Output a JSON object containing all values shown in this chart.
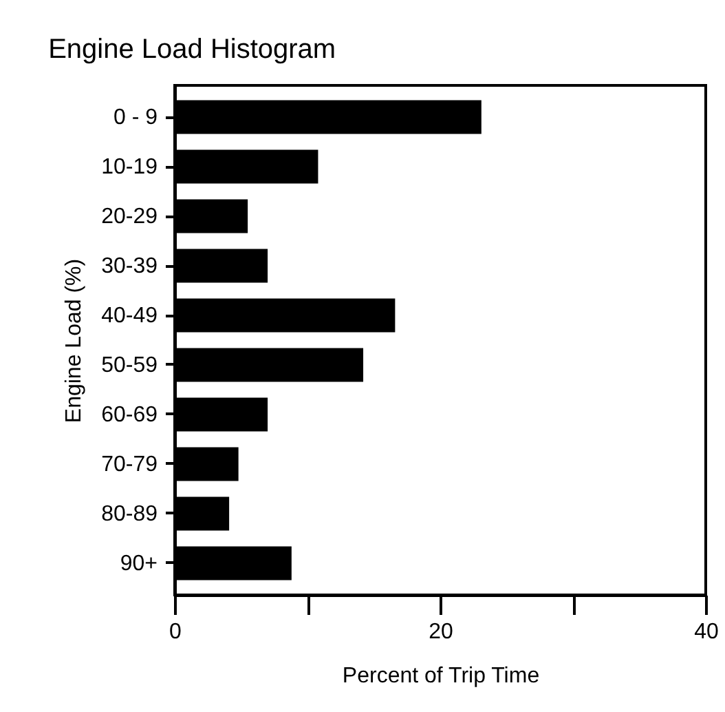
{
  "chart_data": {
    "type": "bar",
    "orientation": "horizontal",
    "title": "Engine Load Histogram",
    "xlabel": "Percent of Trip Time",
    "ylabel": "Engine Load (%)",
    "categories": [
      "0 - 9",
      "10-19",
      "20-29",
      "30-39",
      "40-49",
      "50-59",
      "60-69",
      "70-79",
      "80-89",
      "90+"
    ],
    "values": [
      23.1,
      10.8,
      5.5,
      7.0,
      16.6,
      14.2,
      7.0,
      4.8,
      4.1,
      8.8
    ],
    "color": "#000000",
    "xlim": [
      0,
      40
    ],
    "xticks": [
      0,
      {
        "value": 10,
        "label": null
      },
      20,
      {
        "value": 30,
        "label": null
      },
      40
    ],
    "grid": false
  }
}
